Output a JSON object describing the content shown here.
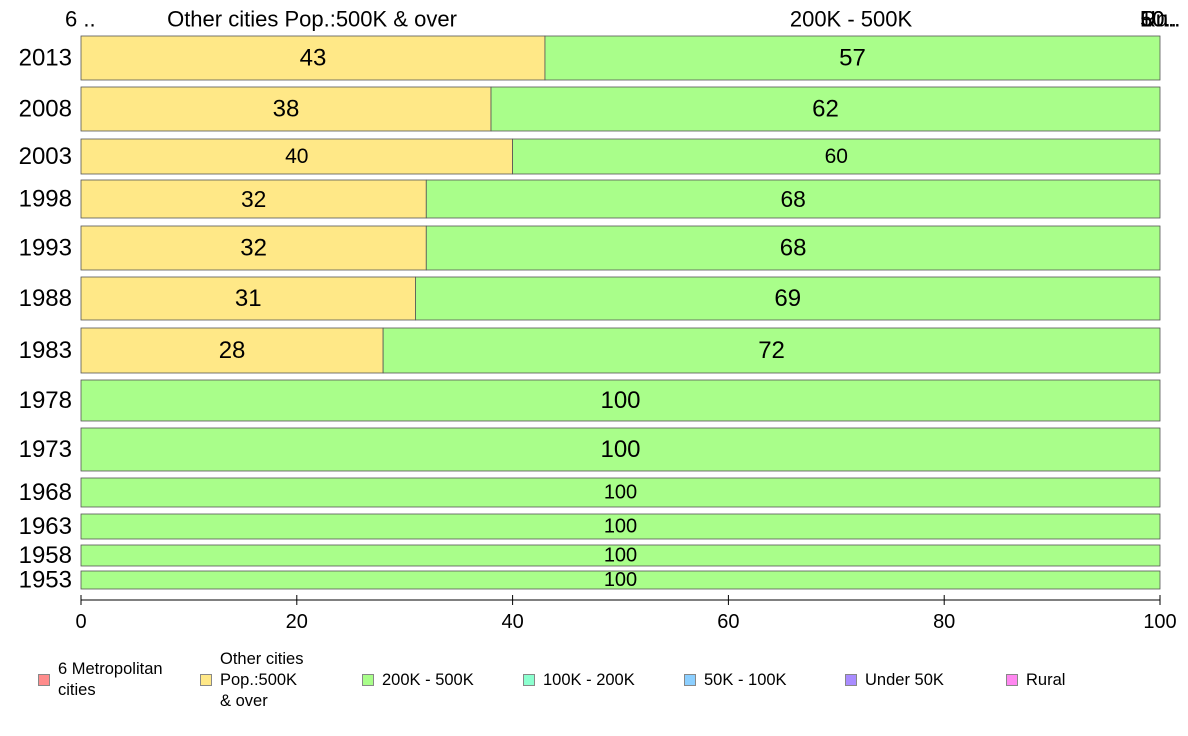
{
  "chart_data": {
    "type": "bar",
    "orientation": "horizontal",
    "stacked": true,
    "categories": [
      "2013",
      "2008",
      "2003",
      "1998",
      "1993",
      "1988",
      "1983",
      "1978",
      "1973",
      "1968",
      "1963",
      "1958",
      "1953"
    ],
    "series": [
      {
        "name": "6 Metropolitan\n cities",
        "color": "#ff8c8c",
        "values": [
          0,
          0,
          0,
          0,
          0,
          0,
          0,
          0,
          0,
          0,
          0,
          0,
          0
        ]
      },
      {
        "name": "Other cities\nPop.:500K\n & over",
        "color": "#ffe887",
        "values": [
          43,
          38,
          40,
          32,
          32,
          31,
          28,
          0,
          0,
          0,
          0,
          0,
          0
        ]
      },
      {
        "name": "200K - 500K",
        "color": "#a9fe8a",
        "values": [
          57,
          62,
          60,
          68,
          68,
          69,
          72,
          100,
          100,
          100,
          100,
          100,
          100
        ]
      },
      {
        "name": "100K - 200K",
        "color": "#8cffcf",
        "values": [
          0,
          0,
          0,
          0,
          0,
          0,
          0,
          0,
          0,
          0,
          0,
          0,
          0
        ]
      },
      {
        "name": "50K - 100K",
        "color": "#8ccfff",
        "values": [
          0,
          0,
          0,
          0,
          0,
          0,
          0,
          0,
          0,
          0,
          0,
          0,
          0
        ]
      },
      {
        "name": "Under 50K",
        "color": "#a98cff",
        "values": [
          0,
          0,
          0,
          0,
          0,
          0,
          0,
          0,
          0,
          0,
          0,
          0,
          0
        ]
      },
      {
        "name": "Rural",
        "color": "#ff87f0",
        "values": [
          0,
          0,
          0,
          0,
          0,
          0,
          0,
          0,
          0,
          0,
          0,
          0,
          0
        ]
      }
    ],
    "top_labels": [
      "6 ..",
      "Other cities Pop.:500K & over",
      "200K - 500K",
      "10..",
      "50..",
      "Un..",
      "Ru.."
    ],
    "xlim": [
      0,
      100
    ],
    "xticks": [
      "0",
      "20",
      "40",
      "60",
      "80",
      "100"
    ],
    "legend_position": "bottom",
    "grid": false
  }
}
